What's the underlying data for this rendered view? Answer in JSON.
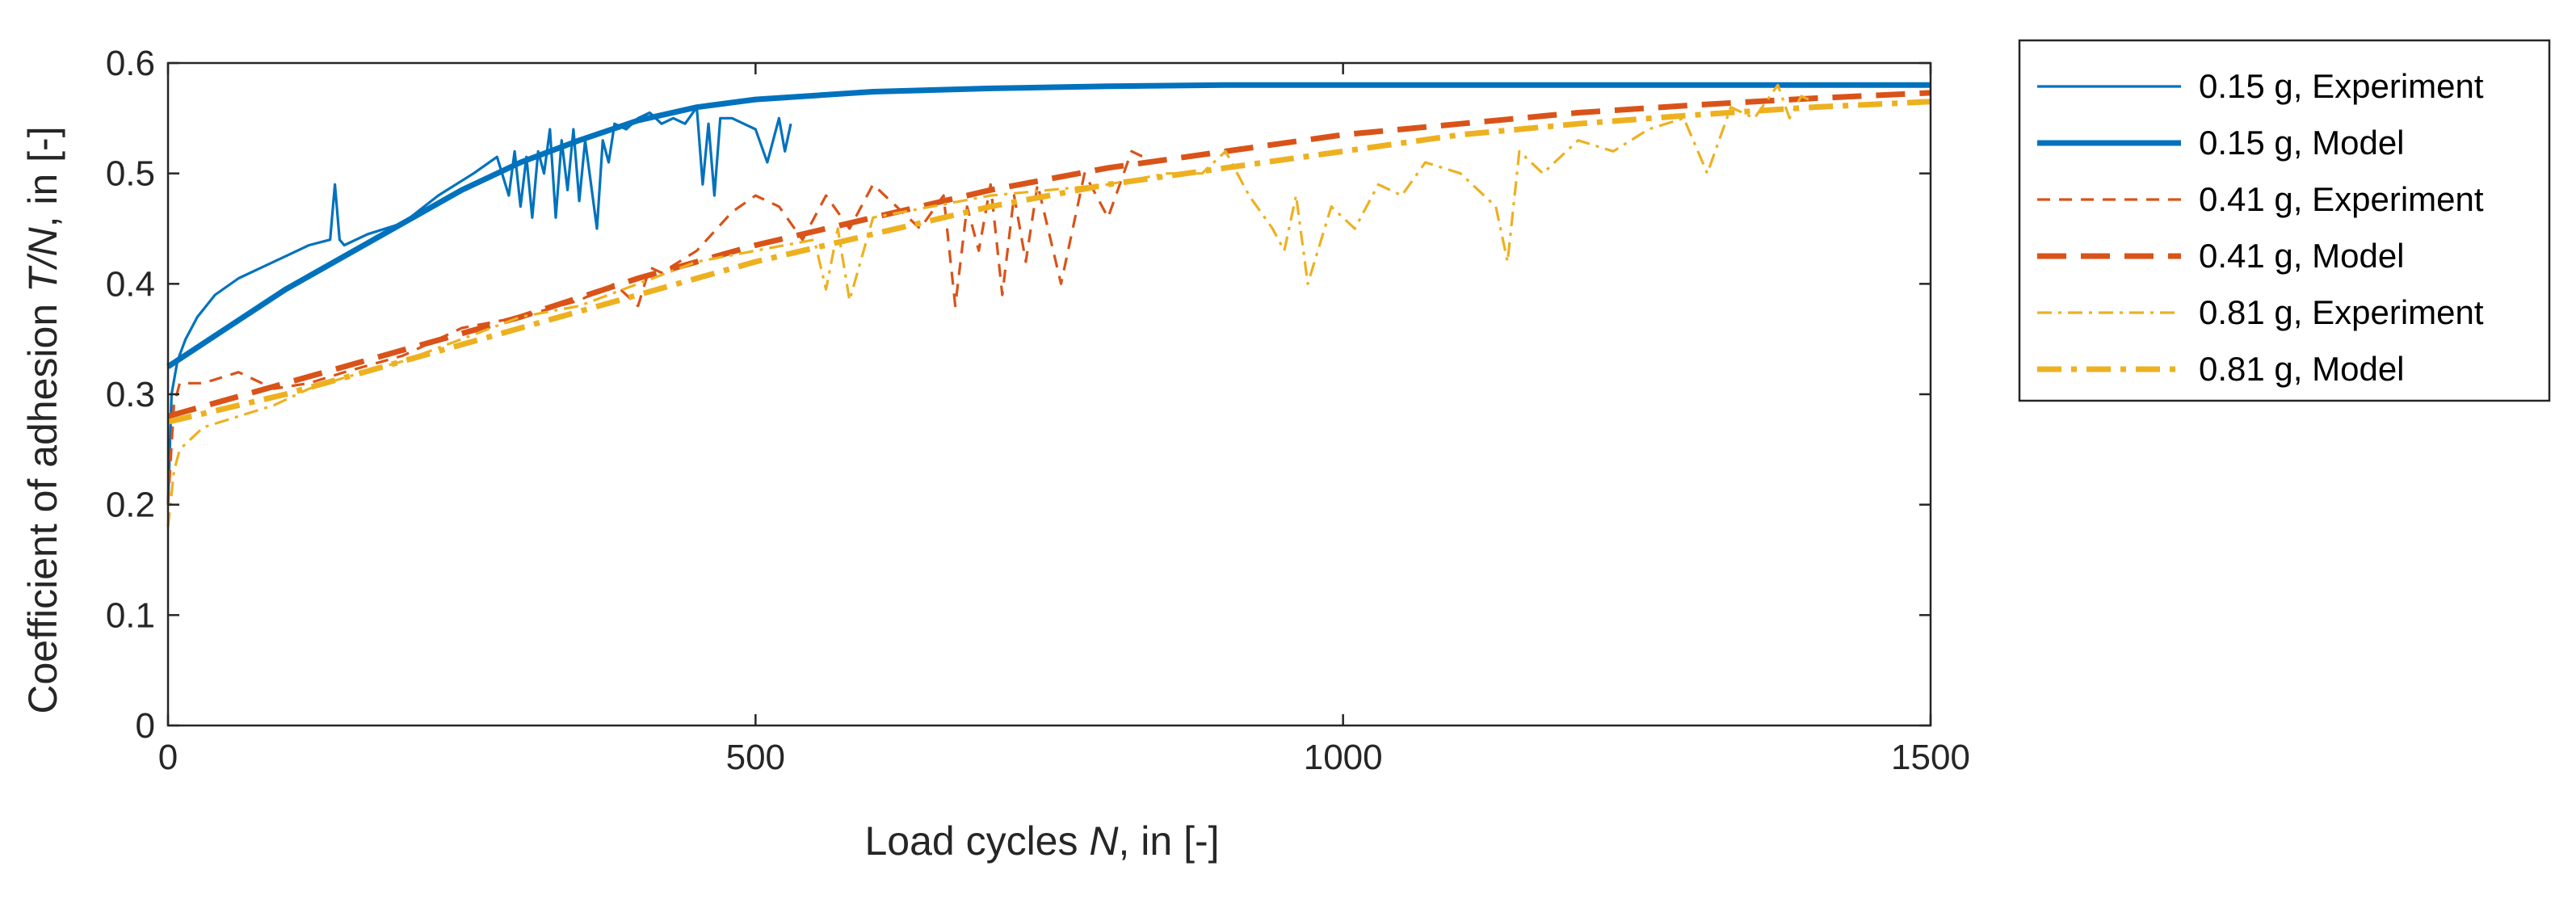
{
  "chart_data": {
    "type": "line",
    "xlabel_parts": [
      "Load cycles ",
      "N",
      ", in [-]"
    ],
    "ylabel_parts": [
      "Coefficient of adhesion ",
      "T/N",
      ", in [-]"
    ],
    "xlim": [
      0,
      1500
    ],
    "ylim": [
      0,
      0.6
    ],
    "x_ticks": [
      0,
      500,
      1000,
      1500
    ],
    "y_ticks": [
      0,
      0.1,
      0.2,
      0.3,
      0.4,
      0.5,
      0.6
    ],
    "x_tick_labels": [
      "0",
      "500",
      "1000",
      "1500"
    ],
    "y_tick_labels": [
      "0",
      "0.1",
      "0.2",
      "0.3",
      "0.4",
      "0.5",
      "0.6"
    ],
    "grid": false,
    "legend_position": "outside-right",
    "series": [
      {
        "name": "0.15 g, Experiment",
        "color": "#0072BD",
        "style": "solid",
        "weight": "thin",
        "x": [
          0,
          3,
          8,
          15,
          25,
          40,
          60,
          80,
          100,
          120,
          138,
          142,
          146,
          150,
          170,
          200,
          230,
          260,
          280,
          290,
          295,
          300,
          305,
          310,
          315,
          320,
          325,
          330,
          335,
          340,
          345,
          350,
          355,
          360,
          365,
          370,
          375,
          380,
          390,
          400,
          410,
          420,
          430,
          440,
          450,
          455,
          460,
          465,
          470,
          480,
          490,
          500,
          510,
          520,
          525,
          530
        ],
        "values": [
          0.2,
          0.3,
          0.33,
          0.35,
          0.37,
          0.39,
          0.405,
          0.415,
          0.425,
          0.435,
          0.44,
          0.49,
          0.44,
          0.435,
          0.445,
          0.455,
          0.48,
          0.5,
          0.515,
          0.48,
          0.52,
          0.47,
          0.515,
          0.46,
          0.52,
          0.5,
          0.54,
          0.46,
          0.53,
          0.485,
          0.54,
          0.475,
          0.53,
          0.49,
          0.45,
          0.53,
          0.51,
          0.545,
          0.54,
          0.55,
          0.555,
          0.545,
          0.55,
          0.545,
          0.56,
          0.49,
          0.545,
          0.48,
          0.55,
          0.55,
          0.545,
          0.54,
          0.51,
          0.55,
          0.52,
          0.545
        ]
      },
      {
        "name": "0.15 g, Model",
        "color": "#0072BD",
        "style": "solid",
        "weight": "thick",
        "x": [
          0,
          50,
          100,
          150,
          200,
          250,
          300,
          350,
          400,
          450,
          500,
          600,
          700,
          800,
          900,
          1000,
          1100,
          1200,
          1300,
          1400,
          1500
        ],
        "values": [
          0.325,
          0.36,
          0.395,
          0.425,
          0.455,
          0.485,
          0.51,
          0.53,
          0.548,
          0.56,
          0.567,
          0.574,
          0.577,
          0.579,
          0.58,
          0.58,
          0.58,
          0.58,
          0.58,
          0.58,
          0.58
        ]
      },
      {
        "name": "0.41 g, Experiment",
        "color": "#D95319",
        "style": "dashed",
        "weight": "thin",
        "x": [
          0,
          5,
          10,
          30,
          60,
          90,
          120,
          150,
          200,
          250,
          300,
          350,
          380,
          400,
          410,
          420,
          450,
          480,
          500,
          520,
          540,
          560,
          580,
          600,
          620,
          640,
          660,
          670,
          680,
          690,
          700,
          710,
          720,
          730,
          740,
          760,
          780,
          800,
          820,
          840
        ],
        "values": [
          0.2,
          0.29,
          0.31,
          0.31,
          0.32,
          0.305,
          0.31,
          0.32,
          0.335,
          0.36,
          0.37,
          0.385,
          0.4,
          0.38,
          0.415,
          0.41,
          0.43,
          0.465,
          0.48,
          0.47,
          0.44,
          0.48,
          0.45,
          0.49,
          0.47,
          0.45,
          0.48,
          0.38,
          0.47,
          0.43,
          0.49,
          0.39,
          0.48,
          0.42,
          0.49,
          0.4,
          0.5,
          0.46,
          0.52,
          0.51
        ]
      },
      {
        "name": "0.41 g, Model",
        "color": "#D95319",
        "style": "dashed",
        "weight": "thick",
        "x": [
          0,
          100,
          200,
          300,
          400,
          500,
          600,
          700,
          800,
          900,
          1000,
          1100,
          1200,
          1300,
          1400,
          1500
        ],
        "values": [
          0.28,
          0.31,
          0.34,
          0.37,
          0.405,
          0.435,
          0.46,
          0.485,
          0.505,
          0.52,
          0.535,
          0.545,
          0.555,
          0.562,
          0.568,
          0.573
        ]
      },
      {
        "name": "0.81 g, Experiment",
        "color": "#EDB120",
        "style": "dashdot",
        "weight": "thin",
        "x": [
          0,
          5,
          10,
          30,
          60,
          90,
          120,
          150,
          200,
          250,
          300,
          350,
          400,
          450,
          500,
          550,
          560,
          570,
          580,
          600,
          650,
          700,
          750,
          800,
          850,
          880,
          900,
          920,
          940,
          950,
          960,
          970,
          990,
          1010,
          1030,
          1050,
          1070,
          1100,
          1130,
          1140,
          1150,
          1170,
          1200,
          1230,
          1260,
          1290,
          1310,
          1330,
          1350,
          1370,
          1380,
          1390,
          1400
        ],
        "values": [
          0.18,
          0.23,
          0.25,
          0.27,
          0.28,
          0.29,
          0.305,
          0.315,
          0.33,
          0.35,
          0.37,
          0.38,
          0.4,
          0.42,
          0.43,
          0.44,
          0.395,
          0.45,
          0.385,
          0.46,
          0.47,
          0.48,
          0.485,
          0.49,
          0.5,
          0.5,
          0.52,
          0.48,
          0.45,
          0.43,
          0.48,
          0.4,
          0.47,
          0.45,
          0.49,
          0.48,
          0.51,
          0.5,
          0.47,
          0.42,
          0.52,
          0.5,
          0.53,
          0.52,
          0.54,
          0.55,
          0.5,
          0.56,
          0.55,
          0.58,
          0.55,
          0.57,
          0.565
        ]
      },
      {
        "name": "0.81 g, Model",
        "color": "#EDB120",
        "style": "dashdot",
        "weight": "thick",
        "x": [
          0,
          100,
          200,
          300,
          400,
          500,
          600,
          700,
          800,
          900,
          1000,
          1100,
          1200,
          1300,
          1400,
          1500
        ],
        "values": [
          0.275,
          0.3,
          0.33,
          0.36,
          0.39,
          0.42,
          0.445,
          0.47,
          0.49,
          0.505,
          0.52,
          0.535,
          0.545,
          0.553,
          0.56,
          0.565
        ]
      }
    ]
  }
}
